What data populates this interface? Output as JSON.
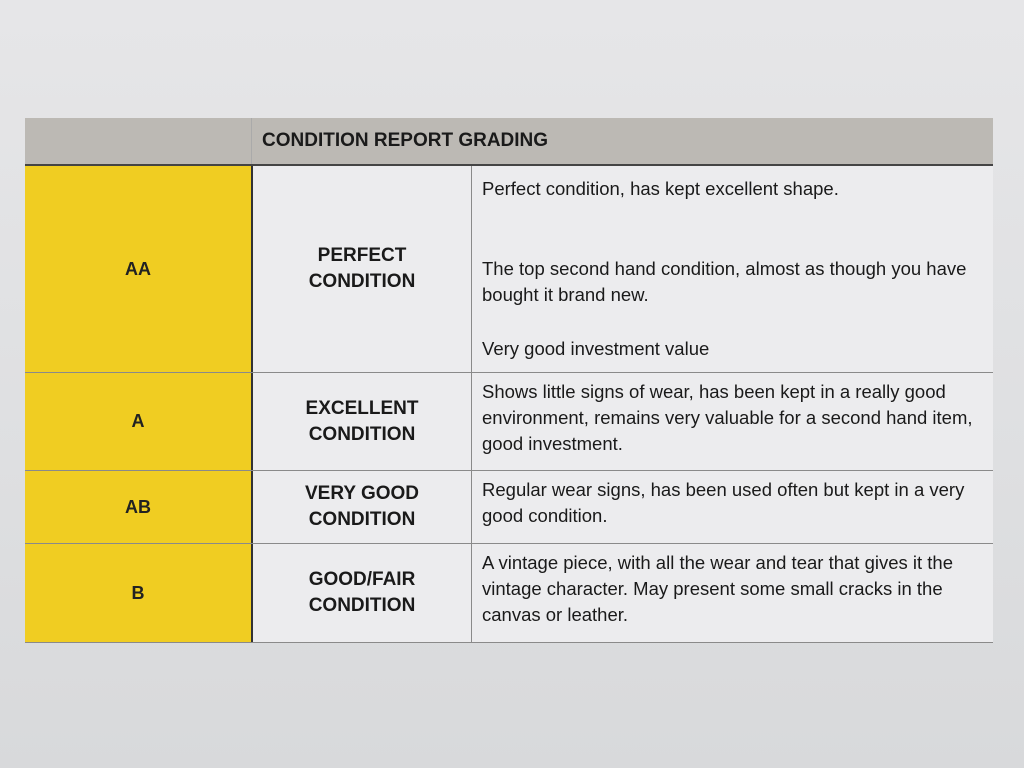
{
  "table": {
    "title": "CONDITION REPORT GRADING",
    "accent_color": "#f0cd22",
    "rows": [
      {
        "grade": "AA",
        "condition": "PERFECT CONDITION",
        "description": [
          "Perfect condition, has kept excellent shape.",
          "The top second hand condition, almost as though you have bought it brand new.",
          "Very good investment value"
        ]
      },
      {
        "grade": "A",
        "condition": "EXCELLENT CONDITION",
        "description": [
          "Shows little signs of wear, has been kept in a really good environment, remains very valuable for a second hand item, good investment."
        ]
      },
      {
        "grade": "AB",
        "condition": "VERY GOOD CONDITION",
        "description": [
          "Regular wear signs, has been used often but kept in a very good condition."
        ]
      },
      {
        "grade": "B",
        "condition": "GOOD/FAIR CONDITION",
        "description": [
          "A vintage piece, with all the wear and tear that gives it the vintage character. May present some small cracks in the canvas or leather."
        ]
      }
    ]
  }
}
